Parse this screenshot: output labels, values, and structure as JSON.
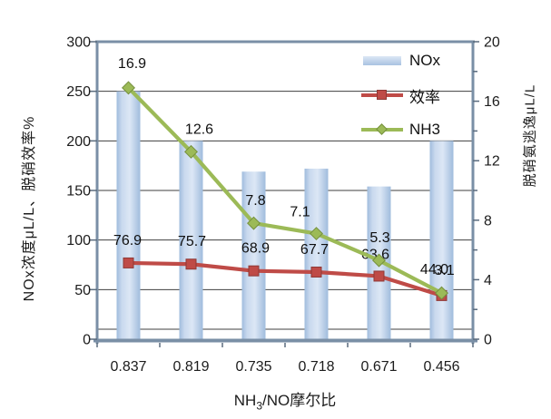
{
  "chart_data": {
    "type": "combo",
    "categories": [
      "0.837",
      "0.819",
      "0.735",
      "0.718",
      "0.671",
      "0.456"
    ],
    "x_axis": {
      "title_pre": "NH",
      "title_sub": "3",
      "title_post": "/NO摩尔比"
    },
    "left_axis": {
      "title": "NOx浓度μL/L、脱硝效率%",
      "min": 0,
      "max": 300,
      "ticks": [
        300,
        250,
        200,
        150,
        100,
        50,
        0
      ]
    },
    "right_axis": {
      "title": "脱硝氨逃逸μL/L",
      "min": 0,
      "max": 20,
      "ticks": [
        20,
        16,
        12,
        8,
        4,
        0
      ],
      "minor_tick_step": 2
    },
    "series": [
      {
        "name": "NOx",
        "type": "bar",
        "axis": "left",
        "values": [
          250,
          200,
          169,
          172,
          154,
          200
        ]
      },
      {
        "name": "效率",
        "type": "line",
        "marker": "square",
        "axis": "left",
        "values": [
          76.9,
          75.7,
          68.9,
          67.7,
          63.6,
          44.0
        ],
        "labels": [
          "76.9",
          "75.7",
          "68.9",
          "67.7",
          "63.6",
          "44.0"
        ],
        "label_dx": [
          -1,
          1,
          2,
          -2,
          -4,
          -8
        ],
        "label_dy": [
          -20,
          -20,
          -20,
          -20,
          -19,
          -24
        ]
      },
      {
        "name": "NH3",
        "type": "line",
        "marker": "diamond",
        "axis": "right",
        "values": [
          16.9,
          12.6,
          7.8,
          7.1,
          5.3,
          3.1
        ],
        "labels": [
          "16.9",
          "12.6",
          "7.8",
          "7.1",
          "5.3",
          "3.1"
        ],
        "label_dx": [
          4,
          9,
          2,
          -18,
          1,
          3
        ],
        "label_dy": [
          -22,
          -20,
          -20,
          -19,
          -20,
          -20
        ]
      }
    ],
    "legend": {
      "position": "top-right-inside",
      "entries": [
        "NOx",
        "效率",
        "NH3"
      ]
    },
    "grid": "horizontal-major"
  },
  "colors": {
    "bar_light": "#dce7f5",
    "bar_mid": "#c9d9ee",
    "bar_dark": "#a0bcdd",
    "efficiency_line": "#bf4b47",
    "efficiency_border": "#8e3835",
    "nh3_line": "#9cba57",
    "nh3_border": "#75903e",
    "axis_frame": "#7a8fa6",
    "gridline": "#3f3f3f",
    "tick": "#5a6b7d",
    "text": "#1c1c1c"
  }
}
